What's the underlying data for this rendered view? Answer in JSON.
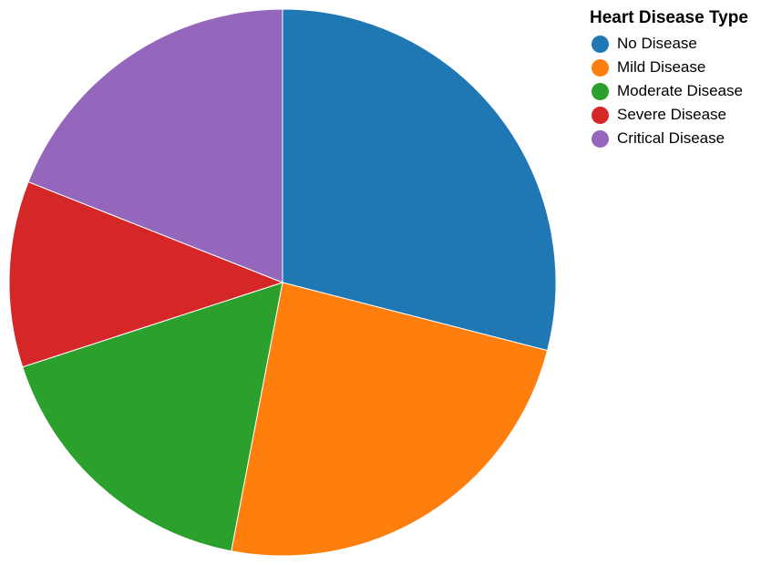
{
  "chart_data": {
    "type": "pie",
    "title": "",
    "legend": {
      "title": "Heart Disease Type",
      "position": "top-right"
    },
    "categories": [
      "No Disease",
      "Mild Disease",
      "Moderate Disease",
      "Severe Disease",
      "Critical Disease"
    ],
    "values": [
      29,
      24,
      17,
      11,
      19
    ],
    "colors": [
      "#1f77b4",
      "#ff7f0e",
      "#2ca02c",
      "#d62728",
      "#9467bd"
    ],
    "start_angle_deg": 0,
    "direction": "clockwise"
  }
}
